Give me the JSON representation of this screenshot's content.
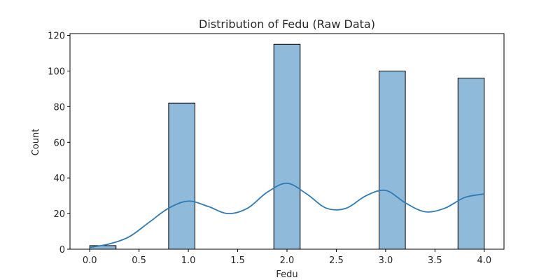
{
  "chart_data": {
    "type": "bar",
    "title": "Distribution of Fedu (Raw Data)",
    "xlabel": "Fedu",
    "ylabel": "Count",
    "xlim": [
      -0.2,
      4.2
    ],
    "ylim": [
      0,
      121
    ],
    "xticks": [
      "0.0",
      "0.5",
      "1.0",
      "1.5",
      "2.0",
      "2.5",
      "3.0",
      "3.5",
      "4.0"
    ],
    "yticks": [
      "0",
      "20",
      "40",
      "60",
      "80",
      "100",
      "120"
    ],
    "bins": [
      {
        "x0": 0.0,
        "x1": 0.2667,
        "count": 2
      },
      {
        "x0": 0.8,
        "x1": 1.0667,
        "count": 82
      },
      {
        "x0": 1.8667,
        "x1": 2.1333,
        "count": 115
      },
      {
        "x0": 2.9333,
        "x1": 3.2,
        "count": 100
      },
      {
        "x0": 3.7333,
        "x1": 4.0,
        "count": 96
      }
    ],
    "kde": {
      "x": [
        0.0,
        0.2,
        0.4,
        0.6,
        0.8,
        1.0,
        1.2,
        1.4,
        1.6,
        1.8,
        2.0,
        2.2,
        2.4,
        2.6,
        2.8,
        3.0,
        3.2,
        3.4,
        3.6,
        3.8,
        4.0
      ],
      "y": [
        1,
        3,
        7,
        15,
        23,
        27,
        24,
        20,
        23,
        32,
        37,
        31,
        23,
        23,
        30,
        33,
        26,
        21,
        23,
        29,
        31
      ]
    },
    "colors": {
      "bar_fill": "#8fbad9",
      "bar_edge": "#000000",
      "kde_line": "#2f7bb6"
    },
    "grid": false,
    "legend": "none"
  }
}
